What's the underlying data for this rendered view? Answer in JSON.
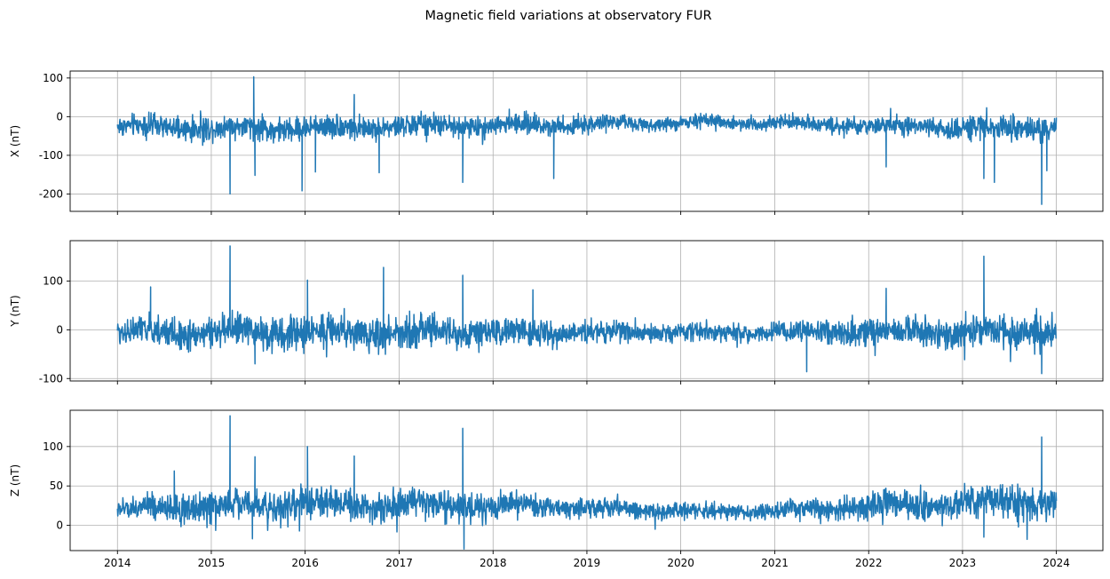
{
  "figure": {
    "title": "Magnetic field variations at observatory FUR"
  },
  "chart_data": [
    {
      "type": "line",
      "ylabel": "X (nT)",
      "x_range": [
        "2013-07-01",
        "2024-06-30"
      ],
      "ylim": [
        -245,
        118
      ],
      "yticks": [
        100,
        0,
        -100,
        -200
      ],
      "xticks": [
        "2014",
        "2015",
        "2016",
        "2017",
        "2018",
        "2019",
        "2020",
        "2021",
        "2022",
        "2023",
        "2024"
      ],
      "xtick_labels_shown": false,
      "grid": true,
      "color": "#1f77b4",
      "series": [
        {
          "x_start": "2014-01-01",
          "x_end": "2024-01-01",
          "baseline_by_year": [
            -25,
            -30,
            -30,
            -25,
            -22,
            -20,
            -15,
            -15,
            -25,
            -28,
            -30
          ],
          "noise_amplitude_by_year": [
            40,
            45,
            45,
            42,
            38,
            32,
            25,
            25,
            32,
            42,
            48
          ],
          "spikes": [
            {
              "x": "2015-06-15",
              "y": 103
            },
            {
              "x": "2016-07-10",
              "y": 57
            },
            {
              "x": "2015-03-15",
              "y": -200
            },
            {
              "x": "2015-06-20",
              "y": -152
            },
            {
              "x": "2015-12-20",
              "y": -192
            },
            {
              "x": "2016-02-10",
              "y": -143
            },
            {
              "x": "2016-10-15",
              "y": -145
            },
            {
              "x": "2017-09-05",
              "y": -170
            },
            {
              "x": "2018-08-25",
              "y": -160
            },
            {
              "x": "2022-03-10",
              "y": -130
            },
            {
              "x": "2023-03-25",
              "y": -160
            },
            {
              "x": "2023-05-05",
              "y": -170
            },
            {
              "x": "2023-11-05",
              "y": -227
            },
            {
              "x": "2023-11-25",
              "y": -140
            }
          ]
        }
      ]
    },
    {
      "type": "line",
      "ylabel": "Y (nT)",
      "x_range": [
        "2013-07-01",
        "2024-06-30"
      ],
      "ylim": [
        -105,
        183
      ],
      "yticks": [
        100,
        0,
        -100
      ],
      "xticks": [
        "2014",
        "2015",
        "2016",
        "2017",
        "2018",
        "2019",
        "2020",
        "2021",
        "2022",
        "2023",
        "2024"
      ],
      "xtick_labels_shown": false,
      "grid": true,
      "color": "#1f77b4",
      "series": [
        {
          "x_start": "2014-01-01",
          "x_end": "2024-01-01",
          "baseline_by_year": [
            -5,
            -5,
            -5,
            -5,
            -5,
            -5,
            -5,
            -5,
            -5,
            -5,
            -5
          ],
          "noise_amplitude_by_year": [
            40,
            48,
            50,
            48,
            42,
            32,
            25,
            28,
            40,
            48,
            50
          ],
          "spikes": [
            {
              "x": "2015-03-15",
              "y": 172
            },
            {
              "x": "2016-11-01",
              "y": 128
            },
            {
              "x": "2017-09-05",
              "y": 112
            },
            {
              "x": "2023-03-25",
              "y": 151
            },
            {
              "x": "2014-05-10",
              "y": 88
            },
            {
              "x": "2016-01-10",
              "y": 102
            },
            {
              "x": "2018-06-05",
              "y": 82
            },
            {
              "x": "2022-03-10",
              "y": 85
            },
            {
              "x": "2021-05-05",
              "y": -86
            },
            {
              "x": "2023-11-05",
              "y": -90
            },
            {
              "x": "2015-06-20",
              "y": -70
            }
          ]
        }
      ]
    },
    {
      "type": "line",
      "ylabel": "Z (nT)",
      "x_range": [
        "2013-07-01",
        "2024-06-30"
      ],
      "ylim": [
        -32,
        146
      ],
      "yticks": [
        100,
        50,
        0
      ],
      "xticks": [
        "2014",
        "2015",
        "2016",
        "2017",
        "2018",
        "2019",
        "2020",
        "2021",
        "2022",
        "2023",
        "2024"
      ],
      "xtick_labels_shown": true,
      "grid": true,
      "color": "#1f77b4",
      "series": [
        {
          "x_start": "2014-01-01",
          "x_end": "2024-01-01",
          "baseline_by_year": [
            20,
            25,
            28,
            25,
            25,
            22,
            18,
            18,
            25,
            28,
            30
          ],
          "noise_amplitude_by_year": [
            20,
            28,
            30,
            28,
            25,
            18,
            15,
            15,
            25,
            30,
            32
          ],
          "spikes": [
            {
              "x": "2015-03-15",
              "y": 139
            },
            {
              "x": "2017-09-05",
              "y": 123
            },
            {
              "x": "2023-11-05",
              "y": 112
            },
            {
              "x": "2016-01-10",
              "y": 100
            },
            {
              "x": "2014-08-10",
              "y": 69
            },
            {
              "x": "2015-06-20",
              "y": 87
            },
            {
              "x": "2016-07-10",
              "y": 88
            },
            {
              "x": "2017-09-10",
              "y": -30
            },
            {
              "x": "2015-06-10",
              "y": -17
            },
            {
              "x": "2023-03-25",
              "y": -15
            }
          ]
        }
      ]
    }
  ]
}
